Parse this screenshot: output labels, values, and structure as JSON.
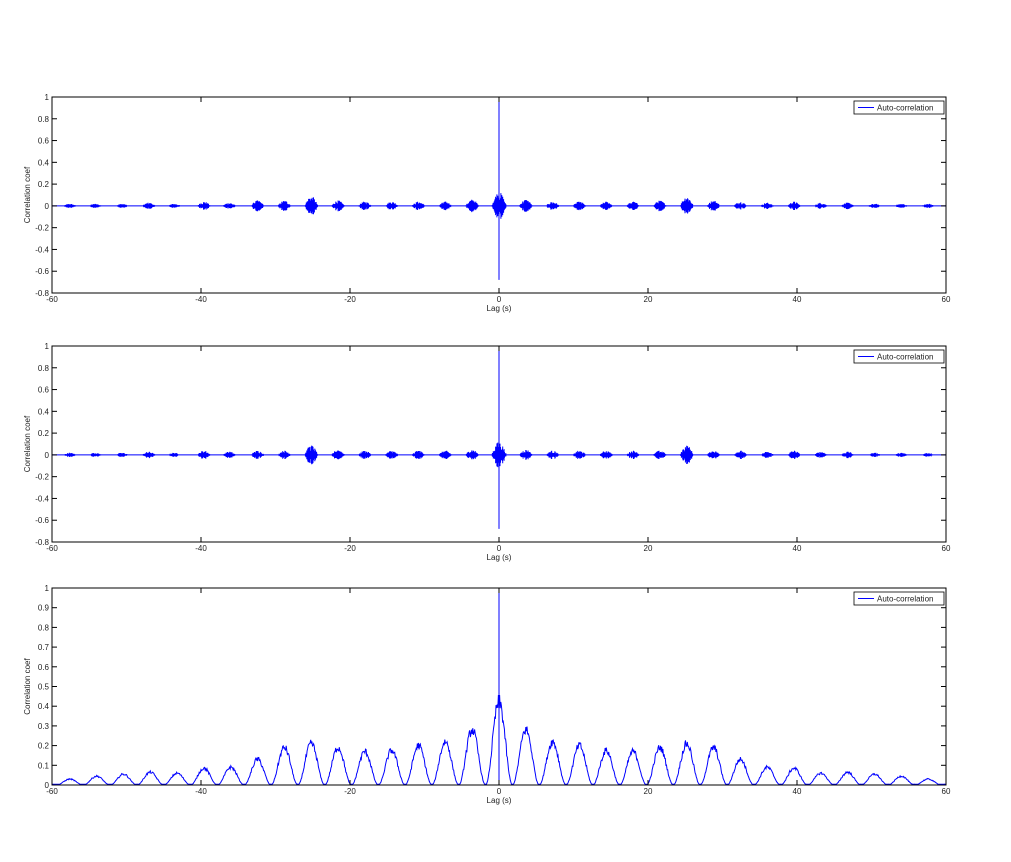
{
  "chart_data": [
    {
      "type": "line",
      "xlabel": "Lag (s)",
      "ylabel": "Correlation coef",
      "xlim": [
        -60,
        60
      ],
      "ylim": [
        -0.8,
        1
      ],
      "xticks": [
        -60,
        -40,
        -20,
        0,
        20,
        40,
        60
      ],
      "yticks": [
        -0.8,
        -0.6,
        -0.4,
        -0.2,
        0,
        0.2,
        0.4,
        0.6,
        0.8,
        1
      ],
      "legend": {
        "position": "top-right",
        "entries": [
          "Auto-correlation"
        ]
      },
      "series": [
        {
          "name": "Auto-correlation",
          "color": "#0000ff",
          "peak": {
            "x": 0,
            "max": 1,
            "min": -0.68
          },
          "bursts": [
            {
              "x": -57.6,
              "amp": 0.02
            },
            {
              "x": -54.2,
              "amp": 0.02
            },
            {
              "x": -50.6,
              "amp": 0.02
            },
            {
              "x": -47.0,
              "amp": 0.03
            },
            {
              "x": -43.6,
              "amp": 0.02
            },
            {
              "x": -39.6,
              "amp": 0.04
            },
            {
              "x": -36.2,
              "amp": 0.03
            },
            {
              "x": -32.4,
              "amp": 0.05
            },
            {
              "x": -28.8,
              "amp": 0.05
            },
            {
              "x": -25.2,
              "amp": 0.09
            },
            {
              "x": -21.6,
              "amp": 0.05
            },
            {
              "x": -18.0,
              "amp": 0.04
            },
            {
              "x": -14.4,
              "amp": 0.04
            },
            {
              "x": -10.8,
              "amp": 0.04
            },
            {
              "x": -7.2,
              "amp": 0.04
            },
            {
              "x": -3.6,
              "amp": 0.06
            },
            {
              "x": 0,
              "amp": 0.13
            },
            {
              "x": 3.6,
              "amp": 0.06
            },
            {
              "x": 7.2,
              "amp": 0.04
            },
            {
              "x": 10.8,
              "amp": 0.04
            },
            {
              "x": 14.4,
              "amp": 0.04
            },
            {
              "x": 18.0,
              "amp": 0.04
            },
            {
              "x": 21.6,
              "amp": 0.05
            },
            {
              "x": 25.2,
              "amp": 0.09
            },
            {
              "x": 28.8,
              "amp": 0.05
            },
            {
              "x": 32.4,
              "amp": 0.04
            },
            {
              "x": 36.0,
              "amp": 0.03
            },
            {
              "x": 39.6,
              "amp": 0.04
            },
            {
              "x": 43.2,
              "amp": 0.03
            },
            {
              "x": 46.8,
              "amp": 0.03
            },
            {
              "x": 50.4,
              "amp": 0.02
            },
            {
              "x": 54.0,
              "amp": 0.02
            },
            {
              "x": 57.6,
              "amp": 0.02
            }
          ]
        }
      ]
    },
    {
      "type": "line",
      "xlabel": "Lag (s)",
      "ylabel": "Correlation coef",
      "xlim": [
        -60,
        60
      ],
      "ylim": [
        -0.8,
        1
      ],
      "xticks": [
        -60,
        -40,
        -20,
        0,
        20,
        40,
        60
      ],
      "yticks": [
        -0.8,
        -0.6,
        -0.4,
        -0.2,
        0,
        0.2,
        0.4,
        0.6,
        0.8,
        1
      ],
      "legend": {
        "position": "top-right",
        "entries": [
          "Auto-correlation"
        ]
      },
      "series": [
        {
          "name": "Auto-correlation",
          "color": "#0000ff",
          "peak": {
            "x": 0,
            "max": 1,
            "min": -0.68
          },
          "bursts": [
            {
              "x": -57.6,
              "amp": 0.02
            },
            {
              "x": -54.2,
              "amp": 0.02
            },
            {
              "x": -50.6,
              "amp": 0.02
            },
            {
              "x": -47.0,
              "amp": 0.03
            },
            {
              "x": -43.6,
              "amp": 0.02
            },
            {
              "x": -39.6,
              "amp": 0.04
            },
            {
              "x": -36.2,
              "amp": 0.03
            },
            {
              "x": -32.4,
              "amp": 0.04
            },
            {
              "x": -28.8,
              "amp": 0.04
            },
            {
              "x": -25.2,
              "amp": 0.09
            },
            {
              "x": -21.6,
              "amp": 0.05
            },
            {
              "x": -18.0,
              "amp": 0.04
            },
            {
              "x": -14.4,
              "amp": 0.04
            },
            {
              "x": -10.8,
              "amp": 0.04
            },
            {
              "x": -7.2,
              "amp": 0.04
            },
            {
              "x": -3.6,
              "amp": 0.05
            },
            {
              "x": 0,
              "amp": 0.12
            },
            {
              "x": 3.6,
              "amp": 0.05
            },
            {
              "x": 7.2,
              "amp": 0.04
            },
            {
              "x": 10.8,
              "amp": 0.04
            },
            {
              "x": 14.4,
              "amp": 0.04
            },
            {
              "x": 18.0,
              "amp": 0.04
            },
            {
              "x": 21.6,
              "amp": 0.04
            },
            {
              "x": 25.2,
              "amp": 0.09
            },
            {
              "x": 28.8,
              "amp": 0.04
            },
            {
              "x": 32.4,
              "amp": 0.04
            },
            {
              "x": 36.0,
              "amp": 0.03
            },
            {
              "x": 39.6,
              "amp": 0.04
            },
            {
              "x": 43.2,
              "amp": 0.03
            },
            {
              "x": 46.8,
              "amp": 0.03
            },
            {
              "x": 50.4,
              "amp": 0.02
            },
            {
              "x": 54.0,
              "amp": 0.02
            },
            {
              "x": 57.6,
              "amp": 0.02
            }
          ]
        }
      ]
    },
    {
      "type": "line",
      "xlabel": "Lag (s)",
      "ylabel": "Correlation coef",
      "xlim": [
        -60,
        60
      ],
      "ylim": [
        0,
        1
      ],
      "xticks": [
        -60,
        -40,
        -20,
        0,
        20,
        40,
        60
      ],
      "yticks": [
        0,
        0.1,
        0.2,
        0.3,
        0.4,
        0.5,
        0.6,
        0.7,
        0.8,
        0.9,
        1
      ],
      "legend": {
        "position": "top-right",
        "entries": [
          "Auto-correlation"
        ]
      },
      "series": [
        {
          "name": "Auto-correlation",
          "color": "#0000ff",
          "peak": {
            "x": 0,
            "max": 1
          },
          "humps": [
            {
              "x": -57.6,
              "height": 0.03
            },
            {
              "x": -54.0,
              "height": 0.045
            },
            {
              "x": -50.4,
              "height": 0.055
            },
            {
              "x": -46.8,
              "height": 0.065
            },
            {
              "x": -43.2,
              "height": 0.06
            },
            {
              "x": -39.6,
              "height": 0.085
            },
            {
              "x": -36.0,
              "height": 0.09
            },
            {
              "x": -32.4,
              "height": 0.13
            },
            {
              "x": -28.8,
              "height": 0.19
            },
            {
              "x": -25.2,
              "height": 0.21
            },
            {
              "x": -21.6,
              "height": 0.19
            },
            {
              "x": -18.0,
              "height": 0.17
            },
            {
              "x": -14.4,
              "height": 0.175
            },
            {
              "x": -10.8,
              "height": 0.2
            },
            {
              "x": -7.2,
              "height": 0.22
            },
            {
              "x": -3.6,
              "height": 0.28
            },
            {
              "x": 0,
              "height": 0.42
            },
            {
              "x": 3.6,
              "height": 0.28
            },
            {
              "x": 7.2,
              "height": 0.22
            },
            {
              "x": 10.8,
              "height": 0.2
            },
            {
              "x": 14.4,
              "height": 0.175
            },
            {
              "x": 18.0,
              "height": 0.17
            },
            {
              "x": 21.6,
              "height": 0.19
            },
            {
              "x": 25.2,
              "height": 0.21
            },
            {
              "x": 28.8,
              "height": 0.19
            },
            {
              "x": 32.4,
              "height": 0.13
            },
            {
              "x": 36.0,
              "height": 0.09
            },
            {
              "x": 39.6,
              "height": 0.085
            },
            {
              "x": 43.2,
              "height": 0.06
            },
            {
              "x": 46.8,
              "height": 0.065
            },
            {
              "x": 50.4,
              "height": 0.055
            },
            {
              "x": 54.0,
              "height": 0.045
            },
            {
              "x": 57.6,
              "height": 0.03
            }
          ]
        }
      ]
    }
  ]
}
